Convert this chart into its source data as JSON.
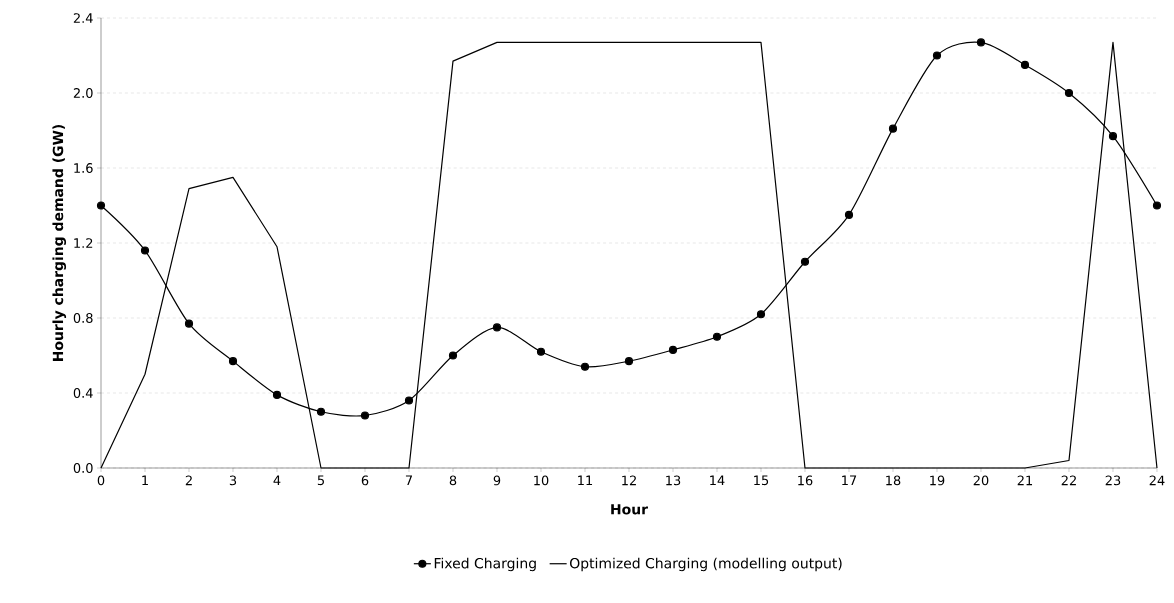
{
  "chart_data": {
    "type": "line",
    "xlabel": "Hour",
    "ylabel": "Hourly charging demand (GW)",
    "x": [
      0,
      1,
      2,
      3,
      4,
      5,
      6,
      7,
      8,
      9,
      10,
      11,
      12,
      13,
      14,
      15,
      16,
      17,
      18,
      19,
      20,
      21,
      22,
      23,
      24
    ],
    "series": [
      {
        "name": "Fixed Charging",
        "color": "#000000",
        "marker": "circle",
        "values": [
          1.4,
          1.16,
          0.77,
          0.57,
          0.39,
          0.3,
          0.28,
          0.36,
          0.6,
          0.75,
          0.62,
          0.54,
          0.57,
          0.63,
          0.7,
          0.82,
          1.1,
          1.35,
          1.81,
          2.2,
          2.27,
          2.15,
          2.0,
          1.77,
          1.4
        ]
      },
      {
        "name": "Optimized Charging (modelling output)",
        "color": "#000000",
        "marker": "none",
        "values": [
          0,
          0.5,
          1.49,
          1.55,
          1.18,
          0,
          0,
          0,
          2.17,
          2.27,
          2.27,
          2.27,
          2.27,
          2.27,
          2.27,
          2.27,
          0,
          0,
          0,
          0,
          0,
          0,
          0.04,
          2.27,
          0
        ]
      }
    ],
    "xlim": [
      0,
      24
    ],
    "xticks": [
      0,
      1,
      2,
      3,
      4,
      5,
      6,
      7,
      8,
      9,
      10,
      11,
      12,
      13,
      14,
      15,
      16,
      17,
      18,
      19,
      20,
      21,
      22,
      23,
      24
    ],
    "ylim": [
      0,
      2.4
    ],
    "yticks": [
      {
        "value": 0,
        "label": "0.0"
      },
      {
        "value": 0.4,
        "label": "0.4"
      },
      {
        "value": 0.8,
        "label": "0.8"
      },
      {
        "value": 1.2,
        "label": "1.2"
      },
      {
        "value": 1.6,
        "label": "1.6"
      },
      {
        "value": 2.0,
        "label": "2.0"
      },
      {
        "value": 2.4,
        "label": "2.4"
      }
    ],
    "grid": "y",
    "legend": "bottom",
    "line_style": "solid"
  }
}
